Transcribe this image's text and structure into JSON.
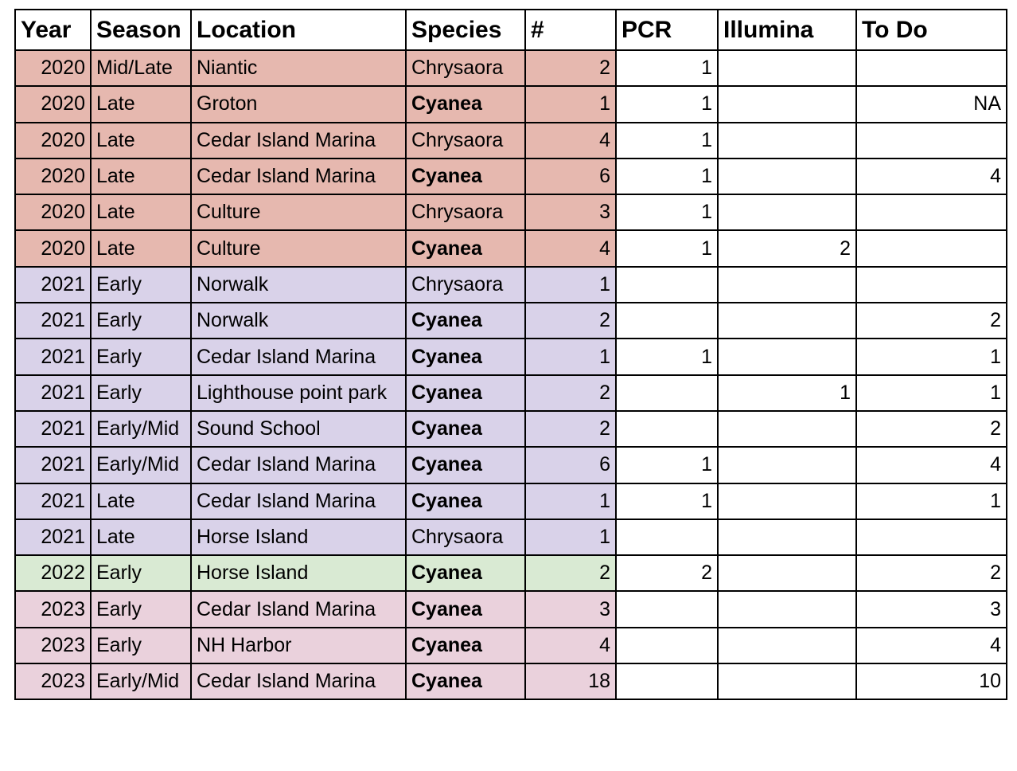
{
  "headers": [
    "Year",
    "Season",
    "Location",
    "Species",
    "#",
    "PCR",
    "Illumina",
    "To Do"
  ],
  "colors": {
    "2020": "#e6b8af",
    "2021": "#d9d2e9",
    "2022": "#d9ead3",
    "2023": "#ead1dc"
  },
  "rows": [
    {
      "year": "2020",
      "season": "Mid/Late",
      "location": "Niantic",
      "species": "Chrysaora",
      "species_bold": false,
      "count": "2",
      "pcr": "1",
      "illumina": "",
      "todo": ""
    },
    {
      "year": "2020",
      "season": "Late",
      "location": "Groton",
      "species": "Cyanea",
      "species_bold": true,
      "count": "1",
      "pcr": "1",
      "illumina": "",
      "todo": "NA"
    },
    {
      "year": "2020",
      "season": "Late",
      "location": "Cedar Island Marina",
      "species": "Chrysaora",
      "species_bold": false,
      "count": "4",
      "pcr": "1",
      "illumina": "",
      "todo": ""
    },
    {
      "year": "2020",
      "season": "Late",
      "location": "Cedar Island Marina",
      "species": "Cyanea",
      "species_bold": true,
      "count": "6",
      "pcr": "1",
      "illumina": "",
      "todo": "4"
    },
    {
      "year": "2020",
      "season": "Late",
      "location": "Culture",
      "species": "Chrysaora",
      "species_bold": false,
      "count": "3",
      "pcr": "1",
      "illumina": "",
      "todo": ""
    },
    {
      "year": "2020",
      "season": "Late",
      "location": "Culture",
      "species": "Cyanea",
      "species_bold": true,
      "count": "4",
      "pcr": "1",
      "illumina": "2",
      "todo": ""
    },
    {
      "year": "2021",
      "season": "Early",
      "location": "Norwalk",
      "species": "Chrysaora",
      "species_bold": false,
      "count": "1",
      "pcr": "",
      "illumina": "",
      "todo": ""
    },
    {
      "year": "2021",
      "season": "Early",
      "location": "Norwalk",
      "species": "Cyanea",
      "species_bold": true,
      "count": "2",
      "pcr": "",
      "illumina": "",
      "todo": "2"
    },
    {
      "year": "2021",
      "season": "Early",
      "location": "Cedar Island Marina",
      "species": "Cyanea",
      "species_bold": true,
      "count": "1",
      "pcr": "1",
      "illumina": "",
      "todo": "1"
    },
    {
      "year": "2021",
      "season": "Early",
      "location": "Lighthouse point park",
      "species": "Cyanea",
      "species_bold": true,
      "count": "2",
      "pcr": "",
      "illumina": "1",
      "todo": "1"
    },
    {
      "year": "2021",
      "season": "Early/Mid",
      "location": "Sound School",
      "species": "Cyanea",
      "species_bold": true,
      "count": "2",
      "pcr": "",
      "illumina": "",
      "todo": "2"
    },
    {
      "year": "2021",
      "season": "Early/Mid",
      "location": "Cedar Island Marina",
      "species": "Cyanea",
      "species_bold": true,
      "count": "6",
      "pcr": "1",
      "illumina": "",
      "todo": "4"
    },
    {
      "year": "2021",
      "season": "Late",
      "location": "Cedar Island Marina",
      "species": "Cyanea",
      "species_bold": true,
      "count": "1",
      "pcr": "1",
      "illumina": "",
      "todo": "1"
    },
    {
      "year": "2021",
      "season": "Late",
      "location": "Horse Island",
      "species": "Chrysaora",
      "species_bold": false,
      "count": "1",
      "pcr": "",
      "illumina": "",
      "todo": ""
    },
    {
      "year": "2022",
      "season": "Early",
      "location": "Horse Island",
      "species": "Cyanea",
      "species_bold": true,
      "count": "2",
      "pcr": "2",
      "illumina": "",
      "todo": "2"
    },
    {
      "year": "2023",
      "season": "Early",
      "location": "Cedar Island Marina",
      "species": "Cyanea",
      "species_bold": true,
      "count": "3",
      "pcr": "",
      "illumina": "",
      "todo": "3"
    },
    {
      "year": "2023",
      "season": "Early",
      "location": "NH Harbor",
      "species": "Cyanea",
      "species_bold": true,
      "count": "4",
      "pcr": "",
      "illumina": "",
      "todo": "4"
    },
    {
      "year": "2023",
      "season": "Early/Mid",
      "location": "Cedar Island Marina",
      "species": "Cyanea",
      "species_bold": true,
      "count": "18",
      "pcr": "",
      "illumina": "",
      "todo": "10"
    }
  ]
}
